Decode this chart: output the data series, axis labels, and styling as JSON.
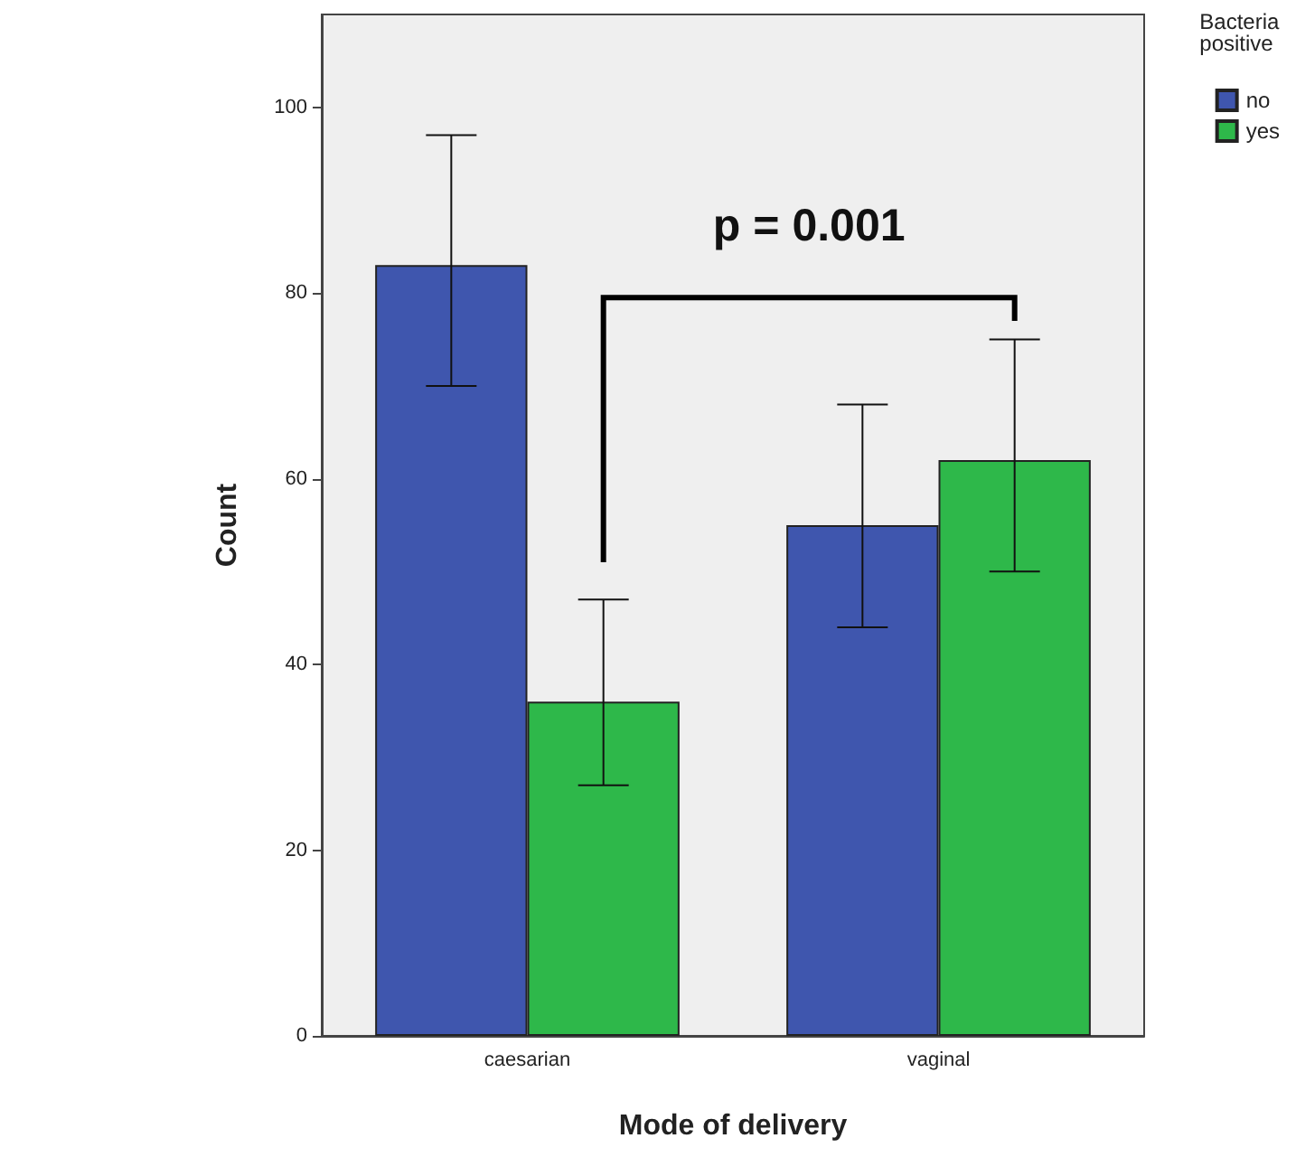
{
  "chart_data": {
    "type": "bar",
    "xlabel": "Mode of delivery",
    "ylabel": "Count",
    "legend_title": "Bacteria positive",
    "categories": [
      "caesarian",
      "vaginal"
    ],
    "series": [
      {
        "name": "no",
        "color": "#3f56ae",
        "values": [
          83,
          55
        ],
        "errors": [
          [
            70,
            97
          ],
          [
            44,
            68
          ]
        ]
      },
      {
        "name": "yes",
        "color": "#2eb84a",
        "values": [
          36,
          62
        ],
        "errors": [
          [
            27,
            47
          ],
          [
            50,
            75
          ]
        ]
      }
    ],
    "ylim": [
      0,
      110
    ],
    "yticks": [
      0,
      20,
      40,
      60,
      80,
      100
    ],
    "grid": false,
    "legend": "top right",
    "annotations": [
      "p = 0.001"
    ]
  }
}
